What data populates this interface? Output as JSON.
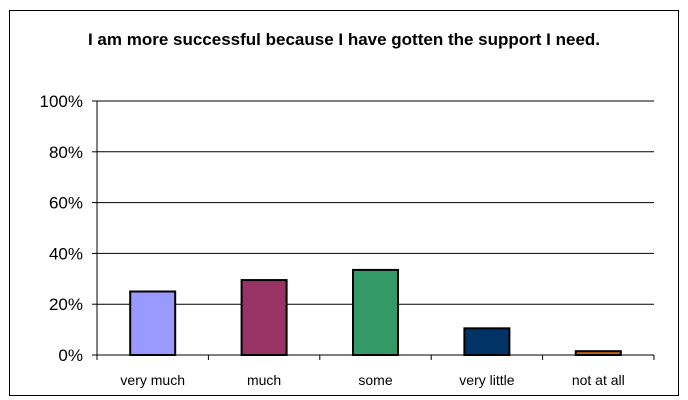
{
  "chart_data": {
    "type": "bar",
    "title": "I am more successful because I have gotten the support I need.",
    "categories": [
      "very much",
      "much",
      "some",
      "very little",
      "not at all"
    ],
    "values": [
      25,
      29.5,
      33.5,
      10.5,
      1.5
    ],
    "unit": "%",
    "ylim": [
      0,
      100
    ],
    "yticks": [
      "0%",
      "20%",
      "40%",
      "60%",
      "80%",
      "100%"
    ],
    "grid": true,
    "legend": "none",
    "colors": [
      "#9999ff",
      "#993366",
      "#339966",
      "#003366",
      "#cc6600"
    ]
  }
}
